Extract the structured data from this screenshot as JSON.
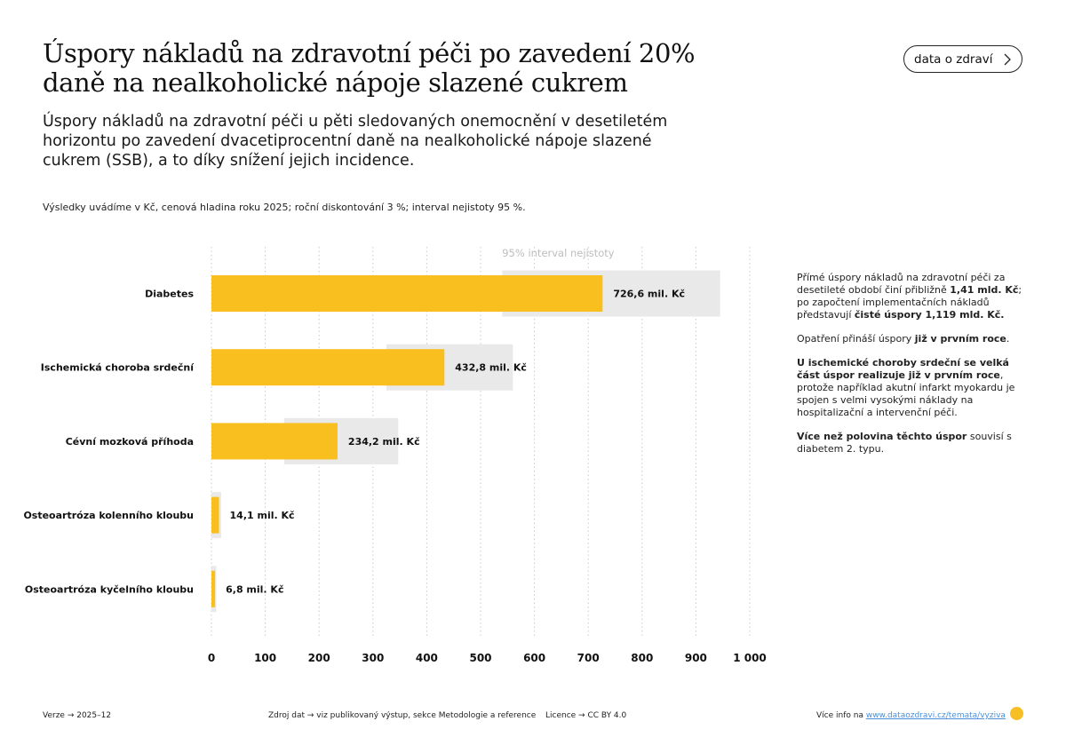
{
  "header": {
    "title": "Úspory nákladů na zdravotní péči po zavedení 20% daně na nealkoholické nápoje slazené cukrem",
    "subtitle": "Úspory nákladů na zdravotní péči u pěti sledovaných onemocnění v desetiletém horizontu po zavedení dvacetiprocentní daně na nealkoholické nápoje slazené cukrem (SSB), a to díky snížení jejich incidence.",
    "note": "Výsledky uvádíme v Kč, cenová hladina roku 2025; roční diskontování 3 %; interval nejistoty 95 %.",
    "brand_button": "data o zdraví",
    "brand_button_icon": "chevron-right-icon"
  },
  "chart_data": {
    "type": "bar",
    "orientation": "horizontal",
    "categories": [
      "Diabetes",
      "Ischemická choroba srdeční",
      "Cévní mozková příhoda",
      "Osteoartróza kolenního kloubu",
      "Osteoartróza kyčelního kloubu"
    ],
    "values": [
      726.6,
      432.8,
      234.2,
      14.1,
      6.8
    ],
    "value_labels": [
      "726,6 mil. Kč",
      "432,8 mil. Kč",
      "234,2 mil. Kč",
      "14,1 mil. Kč",
      "6,8 mil. Kč"
    ],
    "ci_low": [
      540,
      325,
      135,
      0,
      0
    ],
    "ci_high": [
      945,
      560,
      347,
      18,
      9
    ],
    "ci_label": "95% interval nejistoty",
    "xlim": [
      0,
      1000
    ],
    "xticks": [
      0,
      100,
      200,
      300,
      400,
      500,
      600,
      700,
      800,
      900,
      1000
    ],
    "xtick_labels": [
      "0",
      "100",
      "200",
      "300",
      "400",
      "500",
      "600",
      "700",
      "800",
      "900",
      "1 000"
    ],
    "grid": "vertical dotted",
    "colors": {
      "bar": "#f9bf1f",
      "ci": "#e9e9e9",
      "grid": "#c9c9c9"
    }
  },
  "sidebar": {
    "headline_pre": "Přímé úspory nákladů na zdravotní péči za desetileté období činí přibližně ",
    "headline_bold1": "1,41 mld. Kč",
    "headline_mid": "; po započtení implementačních nákladů představují ",
    "headline_bold2": "čisté úspory 1,119 mld. Kč.",
    "p1_pre": "Opatření přináší úspory ",
    "p1_bold": "již v prvním roce",
    "p1_post": ".",
    "p2_bold": "U ischemické choroby srdeční se velká část úspor realizuje již v prvním roce",
    "p2_post": ", protože například akutní infarkt myokardu je spojen s velmi vysokými náklady na hospitalizační a intervenční péči.",
    "p3_bold": "Více než polovina těchto úspor",
    "p3_post": " souvisí s diabetem 2. typu."
  },
  "footer": {
    "version": "Verze → 2025–12",
    "source": "Zdroj dat → viz publikovaný výstup, sekce Metodologie a reference",
    "license": "Licence → CC BY 4.0",
    "more_info_label": "Více info na ",
    "more_info_link": "www.dataozdravi.cz/temata/vyziva",
    "logo_icon": "logo-icon"
  }
}
